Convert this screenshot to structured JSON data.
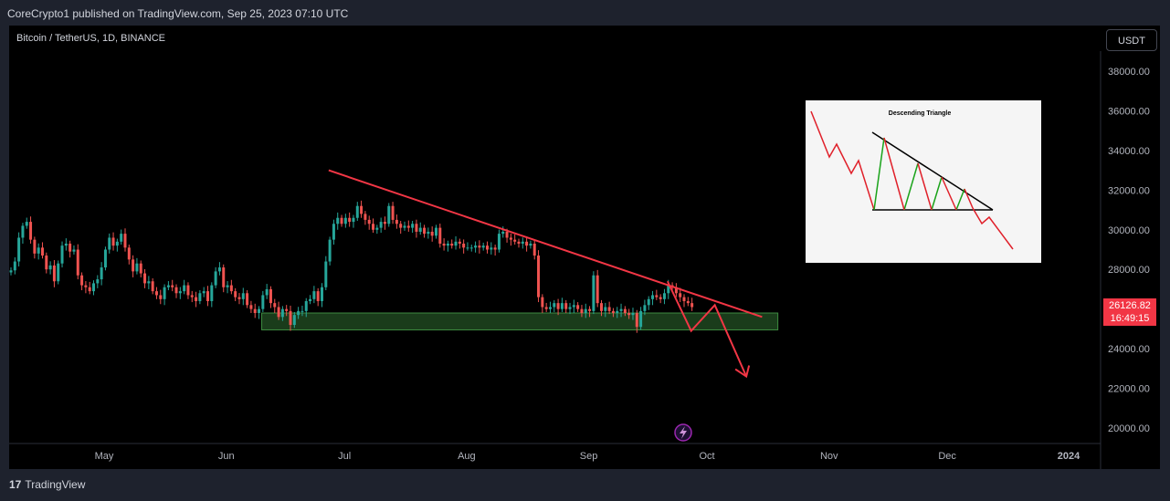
{
  "header": {
    "published": "CoreCrypto1 published on TradingView.com, Sep 25, 2023 07:10 UTC"
  },
  "chart_data": {
    "type": "candlestick",
    "symbol_label": "Bitcoin / TetherUS, 1D, BINANCE",
    "currency": "USDT",
    "last_price": "26126.82",
    "countdown": "16:49:15",
    "ylim": [
      19500,
      39000
    ],
    "y_ticks": [
      "20000.00",
      "22000.00",
      "24000.00",
      "26000.00",
      "28000.00",
      "30000.00",
      "32000.00",
      "34000.00",
      "36000.00",
      "38000.00"
    ],
    "x_ticks": [
      "May",
      "Jun",
      "Jul",
      "Aug",
      "Sep",
      "Oct",
      "Nov",
      "Dec",
      "2024"
    ],
    "close_series": [
      27950,
      28400,
      29600,
      30200,
      30400,
      29500,
      28800,
      29100,
      28700,
      28000,
      28200,
      27400,
      28300,
      29200,
      29300,
      28900,
      29000,
      27700,
      27200,
      27100,
      26900,
      27300,
      27500,
      28100,
      29000,
      29600,
      29200,
      29400,
      29800,
      29100,
      28500,
      27900,
      28300,
      27800,
      27300,
      27400,
      26900,
      26700,
      26500,
      27100,
      27200,
      27100,
      26800,
      26900,
      27200,
      26700,
      26600,
      26400,
      26800,
      26900,
      26400,
      27200,
      27900,
      28100,
      27100,
      27200,
      26900,
      26600,
      26500,
      26800,
      26200,
      26000,
      25800,
      26000,
      26700,
      27000,
      26300,
      26100,
      25600,
      26000,
      25900,
      25200,
      25700,
      25900,
      25900,
      26400,
      26500,
      26900,
      26400,
      27100,
      28400,
      29500,
      30300,
      30600,
      30300,
      30600,
      30400,
      30600,
      31200,
      30800,
      30500,
      30300,
      30000,
      30100,
      30400,
      30300,
      31200,
      30500,
      30300,
      30100,
      30200,
      30100,
      30300,
      29900,
      30100,
      29800,
      29900,
      29700,
      30100,
      29300,
      29200,
      29300,
      29200,
      29400,
      29300,
      29100,
      29100,
      29100,
      29200,
      29100,
      29200,
      29000,
      29100,
      29000,
      29800,
      29900,
      29600,
      29500,
      29400,
      29300,
      29400,
      29200,
      29300,
      28700,
      26600,
      26100,
      26000,
      26100,
      26300,
      26000,
      26300,
      26000,
      26100,
      26200,
      26000,
      25800,
      26000,
      25900,
      27700,
      26300,
      25900,
      26100,
      25900,
      25800,
      25900,
      26000,
      25800,
      25700,
      25800,
      25100,
      25900,
      26200,
      26500,
      26700,
      26600,
      26500,
      26800,
      27200,
      27100,
      26800,
      26600,
      26400,
      26300,
      26100
    ],
    "candle_colors": {
      "up": "#26a69a",
      "down": "#ef5350"
    },
    "annotations": {
      "descending_trendline": {
        "from": [
          "Jun 27",
          33000
        ],
        "to": [
          "Oct 15",
          25600
        ],
        "color": "#f23645"
      },
      "support_zone": {
        "from": "Jun 10",
        "to": "Oct 19",
        "low": 24950,
        "high": 25800,
        "color": "#1e4620"
      },
      "projection_path": [
        [
          "Sep 21",
          27400
        ],
        [
          "Sep 27",
          24900
        ],
        [
          "Oct 3",
          26200
        ],
        [
          "Oct 11",
          22600
        ]
      ],
      "inset_title": "Descending Triangle"
    }
  },
  "event_icon": "lightning-icon",
  "footer": {
    "brand": "TradingView",
    "logo_text": "17"
  }
}
